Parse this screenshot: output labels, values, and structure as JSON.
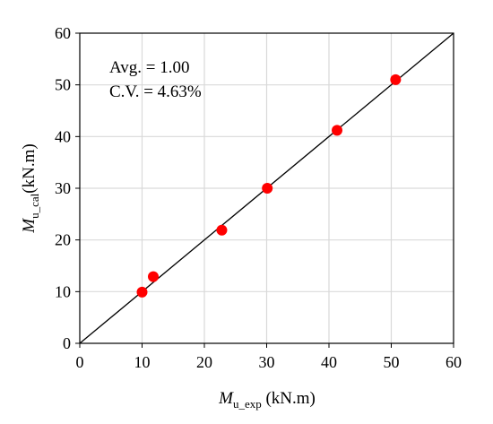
{
  "chart_data": {
    "type": "scatter",
    "x_label_main": "M",
    "x_label_sub": "u_exp",
    "x_label_unit": " (kN.m)",
    "y_label_main": "M",
    "y_label_sub": "u_cal",
    "y_label_unit": "(kN.m)",
    "xlim": [
      0,
      60
    ],
    "ylim": [
      0,
      60
    ],
    "x_ticks": [
      0,
      10,
      20,
      30,
      40,
      50,
      60
    ],
    "y_ticks": [
      0,
      10,
      20,
      30,
      40,
      50,
      60
    ],
    "grid": true,
    "reference_line": {
      "from": [
        0,
        0
      ],
      "to": [
        60,
        60
      ]
    },
    "points": [
      {
        "x": 10.0,
        "y": 9.9
      },
      {
        "x": 11.8,
        "y": 12.9
      },
      {
        "x": 22.8,
        "y": 21.9
      },
      {
        "x": 30.1,
        "y": 30.0
      },
      {
        "x": 41.3,
        "y": 41.2
      },
      {
        "x": 50.7,
        "y": 51.0
      }
    ],
    "annotations": [
      "Avg. = 1.00",
      "C.V. = 4.63%"
    ],
    "colors": {
      "point": "#ff0000",
      "grid": "#d9d9d9",
      "axis": "#000000"
    }
  }
}
